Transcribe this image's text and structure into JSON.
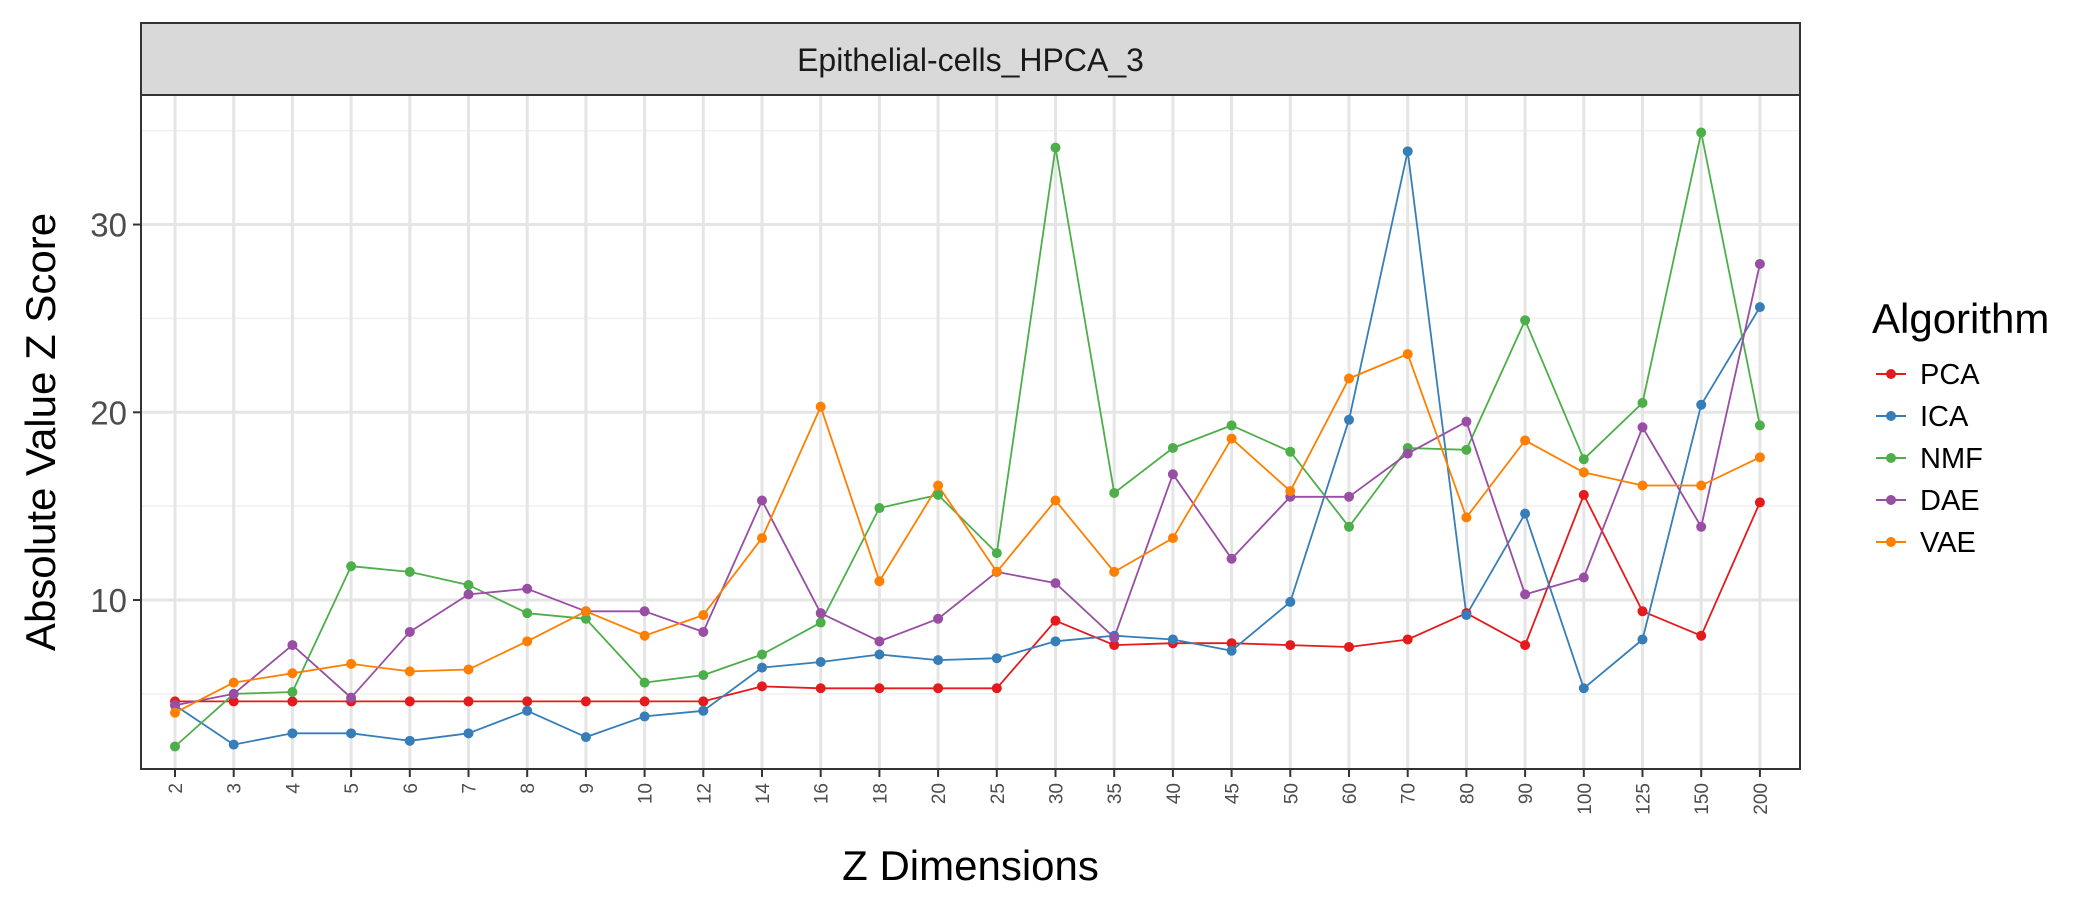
{
  "chart_data": {
    "type": "line",
    "panel_title": "Epithelial-cells_HPCA_3",
    "xlabel": "Z Dimensions",
    "ylabel": "Absolute Value Z Score",
    "categories": [
      "2",
      "3",
      "4",
      "5",
      "6",
      "7",
      "8",
      "9",
      "10",
      "12",
      "14",
      "16",
      "18",
      "20",
      "25",
      "30",
      "35",
      "40",
      "45",
      "50",
      "60",
      "70",
      "80",
      "90",
      "100",
      "125",
      "150",
      "200"
    ],
    "ylim": [
      1,
      36.9
    ],
    "yticks": [
      10,
      20,
      30
    ],
    "grid": true,
    "legend": {
      "title": "Algorithm",
      "position": "right"
    },
    "series": [
      {
        "name": "PCA",
        "color": "#e41a1c",
        "values": [
          4.6,
          4.6,
          4.6,
          4.6,
          4.6,
          4.6,
          4.6,
          4.6,
          4.6,
          4.6,
          5.4,
          5.3,
          5.3,
          5.3,
          5.3,
          8.9,
          7.6,
          7.7,
          7.7,
          7.6,
          7.5,
          7.9,
          9.3,
          7.6,
          15.6,
          9.4,
          8.1,
          15.2
        ]
      },
      {
        "name": "ICA",
        "color": "#377eb8",
        "values": [
          4.4,
          2.3,
          2.9,
          2.9,
          2.5,
          2.9,
          4.1,
          2.7,
          3.8,
          4.1,
          6.4,
          6.7,
          7.1,
          6.8,
          6.9,
          7.8,
          8.1,
          7.9,
          7.3,
          9.9,
          19.6,
          33.9,
          9.2,
          14.6,
          5.3,
          7.9,
          20.4,
          25.6
        ]
      },
      {
        "name": "NMF",
        "color": "#4daf4a",
        "values": [
          2.2,
          5.0,
          5.1,
          11.8,
          11.5,
          10.8,
          9.3,
          9.0,
          5.6,
          6.0,
          7.1,
          8.8,
          14.9,
          15.6,
          12.5,
          34.1,
          15.7,
          18.1,
          19.3,
          17.9,
          13.9,
          18.1,
          18.0,
          24.9,
          17.5,
          20.5,
          34.9,
          19.3
        ]
      },
      {
        "name": "DAE",
        "color": "#984ea3",
        "values": [
          4.4,
          5.0,
          7.6,
          4.8,
          8.3,
          10.3,
          10.6,
          9.4,
          9.4,
          8.3,
          15.3,
          9.3,
          7.8,
          9.0,
          11.5,
          10.9,
          8.0,
          16.7,
          12.2,
          15.5,
          15.5,
          17.8,
          19.5,
          10.3,
          11.2,
          19.2,
          13.9,
          27.9
        ]
      },
      {
        "name": "VAE",
        "color": "#ff7f00",
        "values": [
          4.0,
          5.6,
          6.1,
          6.6,
          6.2,
          6.3,
          7.8,
          9.4,
          8.1,
          9.2,
          13.3,
          20.3,
          11.0,
          16.1,
          11.5,
          15.3,
          11.5,
          13.3,
          18.6,
          15.8,
          21.8,
          23.1,
          14.4,
          18.5,
          16.8,
          16.1,
          16.1,
          17.6
        ]
      }
    ]
  }
}
